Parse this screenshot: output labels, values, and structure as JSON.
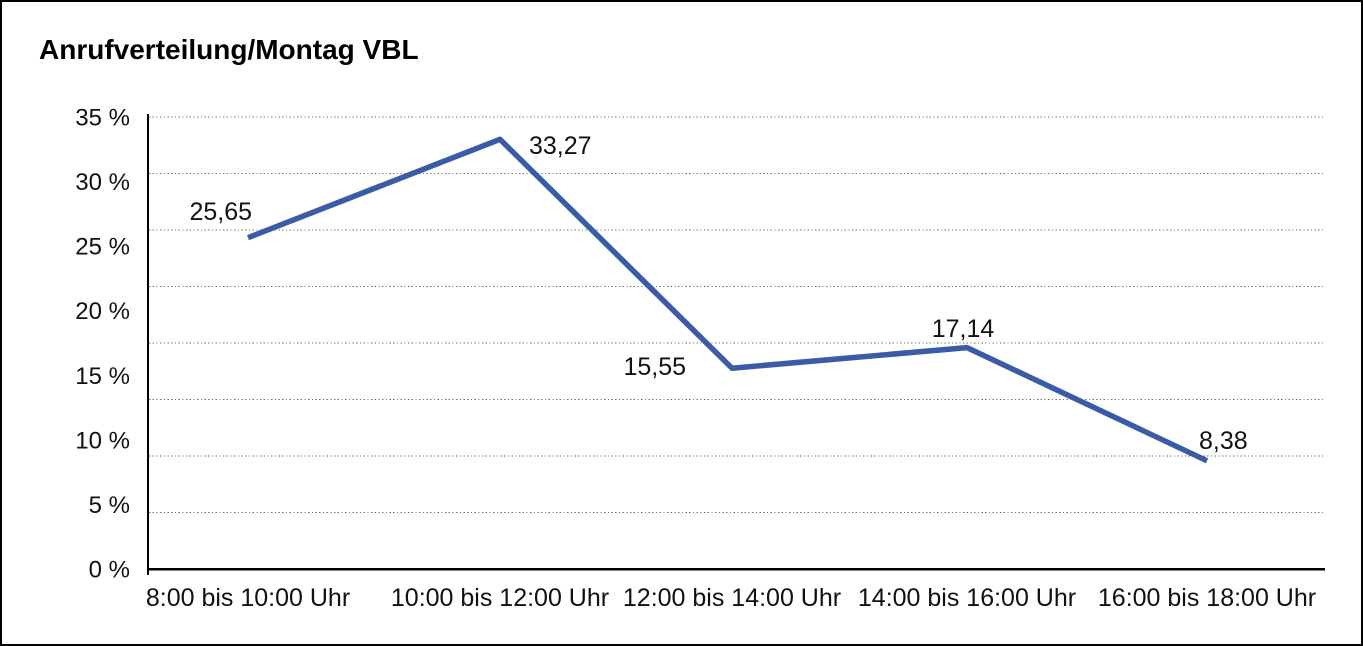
{
  "window": {
    "background": "#ffffff",
    "border_color": "#000000"
  },
  "chart_data": {
    "type": "line",
    "title": "Anrufverteilung/Montag VBL",
    "categories": [
      "8:00 bis 10:00 Uhr",
      "10:00 bis 12:00 Uhr",
      "12:00 bis 14:00 Uhr",
      "14:00 bis 16:00 Uhr",
      "16:00 bis 18:00 Uhr"
    ],
    "series": [
      {
        "values": [
          25.65,
          33.27,
          15.55,
          17.14,
          8.38
        ],
        "point_labels": [
          "25,65",
          "33,27",
          "15,55",
          "17,14",
          "8,38"
        ],
        "color": "#3a5ba6",
        "line_width": 5.5
      }
    ],
    "ylim": [
      0,
      35
    ],
    "ytick_labels": [
      "0 %",
      "5 %",
      "10 %",
      "15 %",
      "20 %",
      "25 %",
      "30 %",
      "35 %"
    ],
    "xlabel": "",
    "ylabel": "",
    "grid": "horizontal-dotted",
    "gridline_intervals": 8,
    "gridline_color": "#6e6e6e",
    "axis_color": "#000000",
    "text_color": "#111111",
    "legend": "none"
  }
}
